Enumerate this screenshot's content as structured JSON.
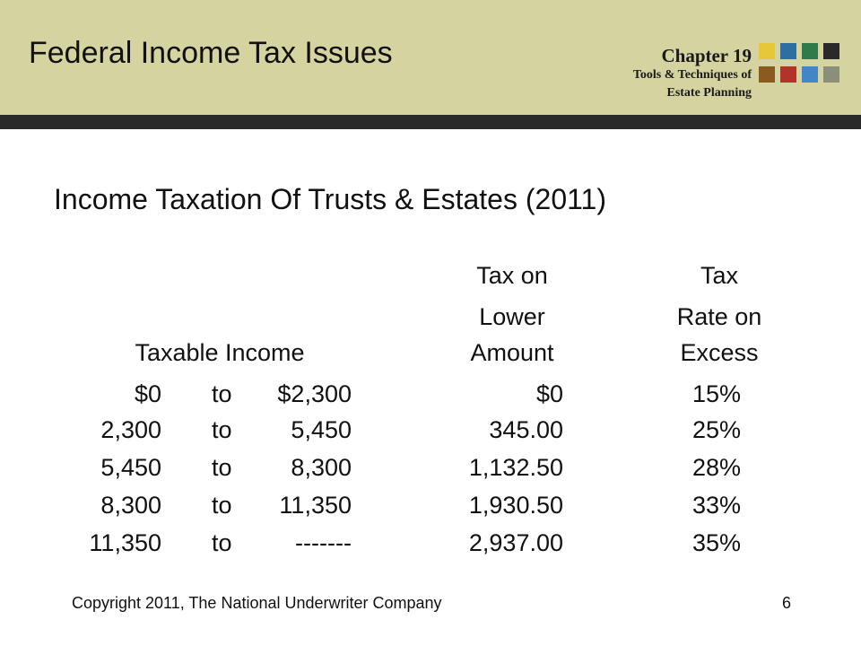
{
  "header": {
    "title": "Federal Income Tax Issues",
    "chapter": "Chapter 19",
    "subtitle_line1": "Tools & Techniques of",
    "subtitle_line2": "Estate Planning",
    "squares_colors": [
      "#e7c73a",
      "#2f6fa0",
      "#2f7a48",
      "#2a2a2a",
      "#8a5a1e",
      "#b3322a",
      "#3f88c5",
      "#8a8f7a"
    ]
  },
  "main": {
    "title": "Income Taxation Of Trusts & Estates (2011)",
    "headers": {
      "taxable_income": "Taxable Income",
      "tax_lower_1": "Tax on",
      "tax_lower_2": "Lower",
      "tax_lower_3": "Amount",
      "rate_1": "Tax",
      "rate_2": "Rate on",
      "rate_3": "Excess"
    },
    "rows": [
      {
        "from": "$0",
        "to_word": "to",
        "to": "$2,300",
        "tax": "$0",
        "rate": "15%"
      },
      {
        "from": "2,300",
        "to_word": "to",
        "to": "5,450",
        "tax": "345.00",
        "rate": "25%"
      },
      {
        "from": "5,450",
        "to_word": "to",
        "to": "8,300",
        "tax": "1,132.50",
        "rate": "28%"
      },
      {
        "from": "8,300",
        "to_word": "to",
        "to": "11,350",
        "tax": "1,930.50",
        "rate": "33%"
      },
      {
        "from": "11,350",
        "to_word": "to",
        "to": "-------",
        "tax": "2,937.00",
        "rate": "35%"
      }
    ]
  },
  "footer": {
    "copyright": "Copyright 2011, The National Underwriter Company",
    "page": "6"
  }
}
